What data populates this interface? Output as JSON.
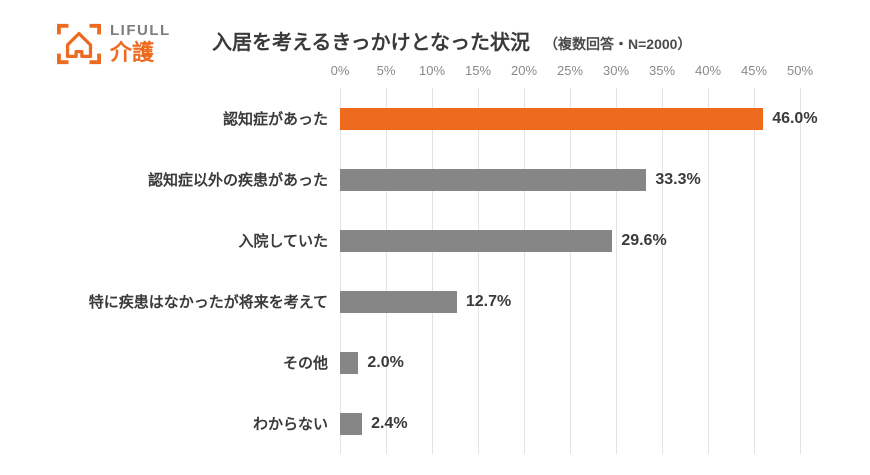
{
  "logo": {
    "brand": "LIFULL",
    "service": "介護"
  },
  "chart_data": {
    "type": "bar",
    "orientation": "horizontal",
    "title": "入居を考えるきっかけとなった状況",
    "note": "（複数回答・N=2000）",
    "categories": [
      "認知症があった",
      "認知症以外の疾患があった",
      "入院していた",
      "特に疾患はなかったが将来を考えて",
      "その他",
      "わからない"
    ],
    "values": [
      46.0,
      33.3,
      29.6,
      12.7,
      2.0,
      2.4
    ],
    "value_labels": [
      "46.0%",
      "33.3%",
      "29.6%",
      "12.7%",
      "2.0%",
      "2.4%"
    ],
    "xlim": [
      0,
      50
    ],
    "tick_step": 5,
    "tick_labels": [
      "0%",
      "5%",
      "10%",
      "15%",
      "20%",
      "25%",
      "30%",
      "35%",
      "40%",
      "45%",
      "50%"
    ],
    "highlight_index": 0,
    "grid": true,
    "legend_position": "none",
    "colors": {
      "highlight": "#ed6a1f",
      "bar": "#868686",
      "grid": "#e3e3e3",
      "text": "#3a3a3a",
      "tick_text": "#8a8a8a"
    }
  }
}
